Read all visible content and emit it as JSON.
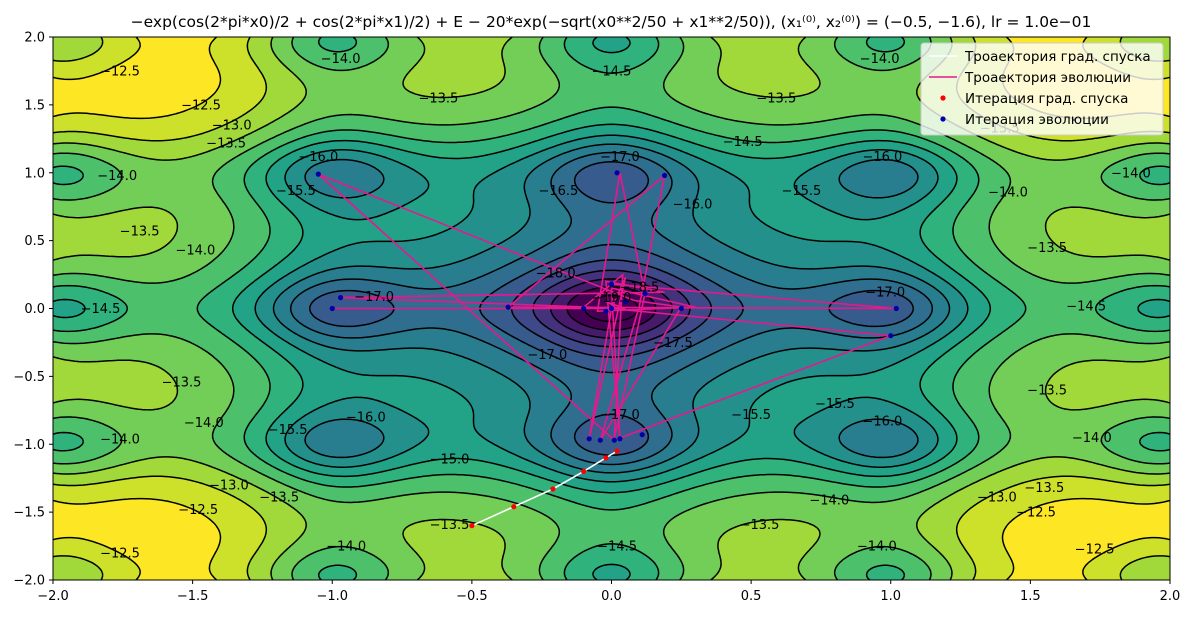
{
  "chart_data": {
    "type": "contour",
    "title": "−exp(cos(2*pi*x0)/2 + cos(2*pi*x1)/2) + E − 20*exp(−sqrt(x0**2/50 + x1**2/50)), (x₁⁽⁰⁾, x₂⁽⁰⁾) = (−0.5, −1.6), lr = 1.0e−01",
    "xlim": [
      -2.0,
      2.0
    ],
    "ylim": [
      -2.0,
      2.0
    ],
    "x_ticks": [
      "−2.0",
      "−1.5",
      "−1.0",
      "−0.5",
      "0.0",
      "0.5",
      "1.0",
      "1.5",
      "2.0"
    ],
    "y_ticks": [
      "2.0",
      "1.5",
      "1.0",
      "0.5",
      "0.0",
      "−0.5",
      "−1.0",
      "−1.5",
      "−2.0"
    ],
    "contour_levels": [
      -19.5,
      -19.0,
      -18.5,
      -18.0,
      -17.5,
      -17.0,
      -16.5,
      -16.0,
      -15.5,
      -15.0,
      -14.5,
      -14.0,
      -13.5,
      -13.0,
      -12.5
    ],
    "contour_labels": [
      {
        "x": -1.76,
        "y": 1.75,
        "text": "−12.5"
      },
      {
        "x": -1.47,
        "y": 1.5,
        "text": "−12.5"
      },
      {
        "x": -1.36,
        "y": 1.35,
        "text": "−13.0"
      },
      {
        "x": -1.38,
        "y": 1.22,
        "text": "−13.5"
      },
      {
        "x": -0.97,
        "y": 1.84,
        "text": "−14.0"
      },
      {
        "x": -0.62,
        "y": 1.55,
        "text": "−13.5"
      },
      {
        "x": 0.0,
        "y": 1.75,
        "text": "−14.5"
      },
      {
        "x": 0.59,
        "y": 1.55,
        "text": "−13.5"
      },
      {
        "x": 0.96,
        "y": 1.84,
        "text": "−14.0"
      },
      {
        "x": 0.47,
        "y": 1.23,
        "text": "−14.5"
      },
      {
        "x": 1.39,
        "y": 1.33,
        "text": "−13.5"
      },
      {
        "x": -1.05,
        "y": 1.12,
        "text": "−16.0"
      },
      {
        "x": -1.13,
        "y": 0.87,
        "text": "−15.5"
      },
      {
        "x": 0.03,
        "y": 1.12,
        "text": "−17.0"
      },
      {
        "x": -0.19,
        "y": 0.87,
        "text": "−16.5"
      },
      {
        "x": 0.29,
        "y": 0.77,
        "text": "−16.0"
      },
      {
        "x": 0.68,
        "y": 0.87,
        "text": "−15.5"
      },
      {
        "x": 0.97,
        "y": 1.12,
        "text": "−16.0"
      },
      {
        "x": 1.42,
        "y": 0.86,
        "text": "−14.0"
      },
      {
        "x": 1.86,
        "y": 1.0,
        "text": "−14.0"
      },
      {
        "x": -1.77,
        "y": 0.98,
        "text": "−14.0"
      },
      {
        "x": -1.69,
        "y": 0.57,
        "text": "−13.5"
      },
      {
        "x": -1.49,
        "y": 0.43,
        "text": "−14.0"
      },
      {
        "x": -1.83,
        "y": 0.0,
        "text": "−14.5"
      },
      {
        "x": -0.85,
        "y": 0.09,
        "text": "−17.0"
      },
      {
        "x": -0.2,
        "y": 0.26,
        "text": "−18.0"
      },
      {
        "x": 0.1,
        "y": 0.16,
        "text": "−18.5"
      },
      {
        "x": 0.0,
        "y": 0.08,
        "text": "−19.0"
      },
      {
        "x": 0.98,
        "y": 0.12,
        "text": "−17.0"
      },
      {
        "x": 1.56,
        "y": 0.45,
        "text": "−13.5"
      },
      {
        "x": 1.7,
        "y": 0.02,
        "text": "−14.5"
      },
      {
        "x": 0.22,
        "y": -0.25,
        "text": "−17.5"
      },
      {
        "x": -0.23,
        "y": -0.34,
        "text": "−17.0"
      },
      {
        "x": -1.54,
        "y": -0.54,
        "text": "−13.5"
      },
      {
        "x": 1.56,
        "y": -0.6,
        "text": "−13.5"
      },
      {
        "x": -1.46,
        "y": -0.84,
        "text": "−14.0"
      },
      {
        "x": -1.16,
        "y": -0.89,
        "text": "−15.5"
      },
      {
        "x": -0.88,
        "y": -0.8,
        "text": "−16.0"
      },
      {
        "x": 0.03,
        "y": -0.78,
        "text": "−17.0"
      },
      {
        "x": 0.5,
        "y": -0.78,
        "text": "−15.5"
      },
      {
        "x": 0.8,
        "y": -0.7,
        "text": "−15.5"
      },
      {
        "x": 0.97,
        "y": -0.83,
        "text": "−16.0"
      },
      {
        "x": -1.76,
        "y": -0.96,
        "text": "−14.0"
      },
      {
        "x": 1.72,
        "y": -0.95,
        "text": "−14.0"
      },
      {
        "x": -0.58,
        "y": -1.11,
        "text": "−15.0"
      },
      {
        "x": -1.37,
        "y": -1.3,
        "text": "−13.0"
      },
      {
        "x": -1.19,
        "y": -1.39,
        "text": "−13.5"
      },
      {
        "x": 0.78,
        "y": -1.41,
        "text": "−14.0"
      },
      {
        "x": 1.55,
        "y": -1.32,
        "text": "−13.5"
      },
      {
        "x": 1.38,
        "y": -1.39,
        "text": "−13.0"
      },
      {
        "x": -1.48,
        "y": -1.48,
        "text": "−12.5"
      },
      {
        "x": 1.52,
        "y": -1.5,
        "text": "−12.5"
      },
      {
        "x": -0.58,
        "y": -1.59,
        "text": "−13.5"
      },
      {
        "x": 0.53,
        "y": -1.59,
        "text": "−13.5"
      },
      {
        "x": -0.95,
        "y": -1.75,
        "text": "−14.0"
      },
      {
        "x": 0.02,
        "y": -1.75,
        "text": "−14.5"
      },
      {
        "x": 0.95,
        "y": -1.75,
        "text": "−14.0"
      },
      {
        "x": -1.76,
        "y": -1.8,
        "text": "−12.5"
      },
      {
        "x": 1.73,
        "y": -1.77,
        "text": "−12.5"
      }
    ],
    "series": [
      {
        "name": "Троаектория град. спуска",
        "kind": "line",
        "color": "#ffffff",
        "x": [
          -0.5,
          -0.35,
          -0.21,
          -0.1,
          -0.02,
          0.02
        ],
        "y": [
          -1.6,
          -1.46,
          -1.33,
          -1.2,
          -1.1,
          -1.05
        ]
      },
      {
        "name": "Троаектория эволюции",
        "kind": "line",
        "color": "#e8178e",
        "x": [
          -1.0,
          0.0,
          1.0,
          0.01,
          -1.05,
          0.08,
          0.25,
          -0.04,
          0.1,
          0.19,
          -0.37,
          1.02,
          0.0,
          -0.1,
          0.04,
          0.01,
          0.12,
          0.03,
          -0.05,
          0.3,
          0.0,
          0.03,
          -0.02,
          0.19,
          -0.97,
          0.05,
          -0.02,
          0.01,
          0.0,
          -0.08,
          0.05,
          0.0
        ],
        "y": [
          0.0,
          0.0,
          -0.2,
          -0.97,
          0.99,
          0.06,
          0.01,
          -0.97,
          0.02,
          0.98,
          0.01,
          0.0,
          0.18,
          0.01,
          0.25,
          -0.96,
          0.11,
          1.0,
          -0.02,
          0.01,
          0.15,
          -0.96,
          0.2,
          0.12,
          0.08,
          0.0,
          0.05,
          0.02,
          0.0,
          -0.96,
          0.23,
          0.0
        ]
      },
      {
        "name": "Итерация град. спуска",
        "kind": "scatter",
        "color": "#ff0000",
        "x": [
          -0.5,
          -0.35,
          -0.21,
          -0.1,
          -0.02,
          0.02
        ],
        "y": [
          -1.6,
          -1.46,
          -1.33,
          -1.2,
          -1.1,
          -1.05
        ]
      },
      {
        "name": "Итерация эволюции",
        "kind": "scatter",
        "color": "#0000a8",
        "x": [
          -1.0,
          -1.05,
          -0.97,
          0.02,
          0.19,
          1.02,
          1.0,
          -0.08,
          0.01,
          0.11,
          -0.37,
          -0.1,
          0.0,
          0.05,
          0.0,
          -0.02,
          -0.04,
          0.03,
          0.12,
          0.25
        ],
        "y": [
          0.0,
          0.99,
          0.08,
          1.0,
          0.98,
          0.0,
          -0.2,
          -0.96,
          -0.97,
          -0.93,
          0.01,
          0.0,
          0.0,
          0.05,
          0.18,
          -0.02,
          -0.97,
          -0.96,
          0.11,
          0.0
        ]
      }
    ],
    "legend": {
      "position": "upper right",
      "entries": [
        {
          "label": "Троаектория град. спуска",
          "marker": "line",
          "color": "#ffffff"
        },
        {
          "label": "Троаектория эволюции",
          "marker": "line",
          "color": "#e8178e"
        },
        {
          "label": "Итерация град. спуска",
          "marker": "dot",
          "color": "#ff0000"
        },
        {
          "label": "Итерация эволюции",
          "marker": "dot",
          "color": "#0000a8"
        }
      ]
    },
    "colormap": "viridis",
    "contour_line_color": "#000000"
  }
}
